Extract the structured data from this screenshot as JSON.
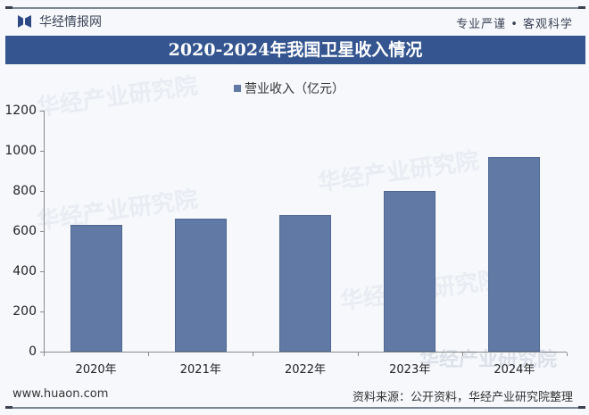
{
  "header": {
    "brand": "华经情报网",
    "slogan": "专业严谨 • 客观科学",
    "logo_icon": "huajing-logo-icon"
  },
  "title": "2020-2024年我国卫星收入情况",
  "legend": {
    "label": "营业收入（亿元）",
    "color": "#6179a5"
  },
  "footer": {
    "website": "www.huaon.com",
    "source": "资料来源：公开资料，华经产业研究院整理"
  },
  "watermark": "华经产业研究院",
  "y_ticks": [
    "0",
    "200",
    "400",
    "600",
    "800",
    "1000",
    "1200"
  ],
  "chart_data": {
    "type": "bar",
    "title": "2020-2024年我国卫星收入情况",
    "categories": [
      "2020年",
      "2021年",
      "2022年",
      "2023年",
      "2024年"
    ],
    "series": [
      {
        "name": "营业收入（亿元）",
        "values": [
          631,
          661,
          681,
          802,
          968
        ],
        "color": "#6179a5"
      }
    ],
    "xlabel": "",
    "ylabel": "",
    "ylim": [
      0,
      1200
    ],
    "yticks": [
      0,
      200,
      400,
      600,
      800,
      1000,
      1200
    ],
    "grid": false,
    "legend_position": "top"
  }
}
